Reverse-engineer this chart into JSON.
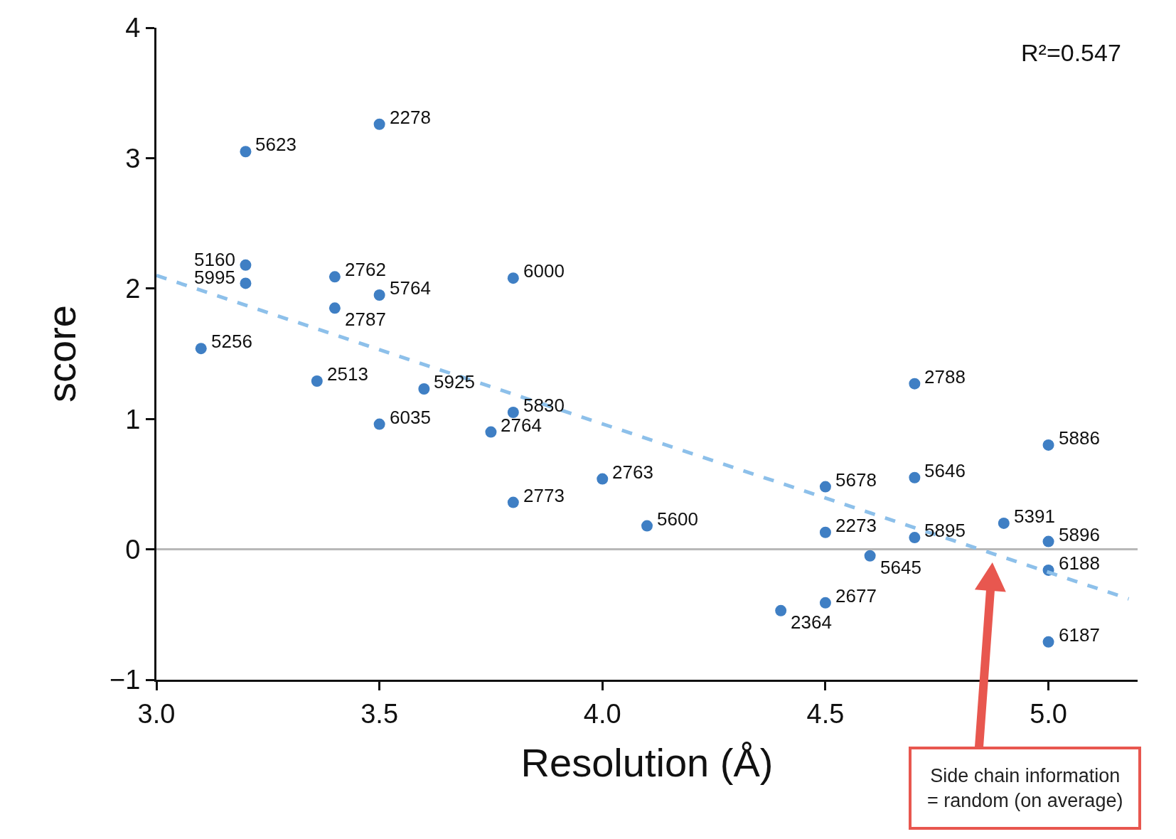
{
  "chart_data": {
    "type": "scatter",
    "xlabel": "Resolution (Å)",
    "ylabel": "score",
    "xlim": [
      3.0,
      5.2
    ],
    "xticks": [
      {
        "value": 3.0,
        "label": "3.0"
      },
      {
        "value": 3.5,
        "label": "3.5"
      },
      {
        "value": 4.0,
        "label": "4.0"
      },
      {
        "value": 4.5,
        "label": "4.5"
      },
      {
        "value": 5.0,
        "label": "5.0"
      }
    ],
    "ylim": [
      -1,
      4
    ],
    "yticks": [
      {
        "value": -1,
        "label": "−1"
      },
      0,
      1,
      2,
      3,
      4
    ],
    "grid": false,
    "marker": "circle",
    "series": [
      {
        "color": "#3f7fc4",
        "x": [
          3.2,
          3.5,
          3.2,
          3.2,
          3.4,
          3.4,
          3.5,
          3.8,
          3.1,
          3.36,
          3.6,
          3.5,
          3.8,
          3.75,
          4.0,
          3.8,
          4.1,
          4.7,
          5.0,
          4.5,
          4.7,
          4.5,
          4.7,
          4.9,
          5.0,
          4.6,
          5.0,
          4.5,
          4.4,
          5.0
        ],
        "values": [
          3.05,
          3.26,
          2.18,
          2.04,
          2.09,
          1.85,
          1.95,
          2.08,
          1.54,
          1.29,
          1.23,
          0.96,
          1.05,
          0.9,
          0.54,
          0.36,
          0.18,
          1.27,
          0.8,
          0.48,
          0.55,
          0.13,
          0.09,
          0.2,
          0.06,
          -0.05,
          -0.16,
          -0.41,
          -0.47,
          -0.71
        ]
      },
      {
        "type": "line",
        "color": "#8dc0ea",
        "line_style": "dashed",
        "marker": "none",
        "x": [
          3.0,
          5.18
        ],
        "values": [
          2.1,
          -0.38
        ]
      }
    ],
    "ref_lines": [
      {
        "axis": "y",
        "value": 0,
        "color": "#b8b8b8"
      }
    ],
    "annotations": [
      {
        "text": "5623",
        "x": 3.2,
        "y": 3.05
      },
      {
        "text": "2278",
        "x": 3.5,
        "y": 3.26
      },
      {
        "text": "5160",
        "x": 3.2,
        "y": 2.18
      },
      {
        "text": "5995",
        "x": 3.2,
        "y": 2.04
      },
      {
        "text": "2762",
        "x": 3.4,
        "y": 2.09
      },
      {
        "text": "2787",
        "x": 3.4,
        "y": 1.85
      },
      {
        "text": "5764",
        "x": 3.5,
        "y": 1.95
      },
      {
        "text": "6000",
        "x": 3.8,
        "y": 2.08
      },
      {
        "text": "5256",
        "x": 3.1,
        "y": 1.54
      },
      {
        "text": "2513",
        "x": 3.36,
        "y": 1.29
      },
      {
        "text": "5925",
        "x": 3.6,
        "y": 1.23
      },
      {
        "text": "6035",
        "x": 3.5,
        "y": 0.96
      },
      {
        "text": "5830",
        "x": 3.8,
        "y": 1.05
      },
      {
        "text": "2764",
        "x": 3.75,
        "y": 0.9
      },
      {
        "text": "2763",
        "x": 4.0,
        "y": 0.54
      },
      {
        "text": "2773",
        "x": 3.8,
        "y": 0.36
      },
      {
        "text": "5600",
        "x": 4.1,
        "y": 0.18
      },
      {
        "text": "2788",
        "x": 4.7,
        "y": 1.27
      },
      {
        "text": "5886",
        "x": 5.0,
        "y": 0.8
      },
      {
        "text": "5678",
        "x": 4.5,
        "y": 0.48
      },
      {
        "text": "5646",
        "x": 4.7,
        "y": 0.55
      },
      {
        "text": "2273",
        "x": 4.5,
        "y": 0.13
      },
      {
        "text": "5895",
        "x": 4.7,
        "y": 0.09
      },
      {
        "text": "5391",
        "x": 4.9,
        "y": 0.2
      },
      {
        "text": "5896",
        "x": 5.0,
        "y": 0.06
      },
      {
        "text": "5645",
        "x": 4.6,
        "y": -0.05
      },
      {
        "text": "6188",
        "x": 5.0,
        "y": -0.16
      },
      {
        "text": "2677",
        "x": 4.5,
        "y": -0.41
      },
      {
        "text": "2364",
        "x": 4.4,
        "y": -0.47
      },
      {
        "text": "6187",
        "x": 5.0,
        "y": -0.71
      },
      "R²=0.547",
      "Side chain information\n= random (on average)"
    ]
  }
}
